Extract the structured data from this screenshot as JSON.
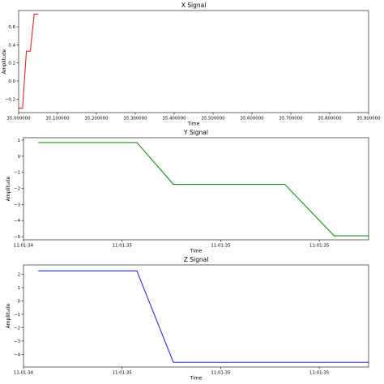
{
  "chart_data": [
    {
      "type": "line",
      "title": "X Signal",
      "xlabel": "Time",
      "ylabel": "Amplitude",
      "color": "#e8262b",
      "xlim": [
        35.0,
        35.9
      ],
      "ylim": [
        -0.35,
        0.78
      ],
      "x_ticks": [
        35.0,
        35.1,
        35.2,
        35.3,
        35.4,
        35.5,
        35.6,
        35.7,
        35.8,
        35.9
      ],
      "x_tick_labels": [
        "35.000000",
        "35.100000",
        "35.200000",
        "35.300000",
        "35.400000",
        "35.500000",
        "35.600000",
        "35.700000",
        "35.800000",
        "35.900000"
      ],
      "y_ticks": [
        -0.2,
        0.0,
        0.2,
        0.4,
        0.6
      ],
      "y_tick_labels": [
        "−0.2",
        "0.0",
        "0.2",
        "0.4",
        "0.6"
      ],
      "x": [
        35.0,
        35.01,
        35.01,
        35.02,
        35.02,
        35.03,
        35.03,
        35.04,
        35.04,
        35.05
      ],
      "y": [
        -0.3,
        -0.3,
        -0.3,
        0.33,
        0.33,
        0.33,
        0.33,
        0.74,
        0.74,
        0.74
      ]
    },
    {
      "type": "line",
      "title": "Y Signal",
      "xlabel": "Time",
      "ylabel": "Amplitude",
      "color": "#1e8b1e",
      "xlim": [
        0,
        17.5
      ],
      "ylim": [
        -5.2,
        1.15
      ],
      "x_ticks": [
        0,
        5,
        10,
        15
      ],
      "x_tick_labels": [
        "11:01:34",
        "11:01:35",
        "11:01:35",
        "11:01:35"
      ],
      "y_ticks": [
        1,
        0,
        -1,
        -2,
        -3,
        -4,
        -5
      ],
      "y_tick_labels": [
        "1",
        "0",
        "−1",
        "−2",
        "−3",
        "−4",
        "−5"
      ],
      "x": [
        0.75,
        5.75,
        7.6,
        13.25,
        15.75,
        18.8
      ],
      "y": [
        0.85,
        0.85,
        -1.75,
        -1.75,
        -4.95,
        -4.95
      ]
    },
    {
      "type": "line",
      "title": "Z Signal",
      "xlabel": "Time",
      "ylabel": "Amplitude",
      "color": "#2d2de0",
      "xlim": [
        0,
        17.5
      ],
      "ylim": [
        -4.95,
        2.7
      ],
      "x_ticks": [
        0,
        5,
        10,
        15
      ],
      "x_tick_labels": [
        "11:01:34",
        "11:01:35",
        "11:01:35",
        "11:01:35"
      ],
      "y_ticks": [
        2,
        1,
        0,
        -1,
        -2,
        -3,
        -4
      ],
      "y_tick_labels": [
        "2",
        "1",
        "0",
        "−1",
        "−2",
        "−3",
        "−4"
      ],
      "x": [
        0.75,
        5.75,
        7.6,
        18.8
      ],
      "y": [
        2.25,
        2.25,
        -4.6,
        -4.6
      ]
    }
  ]
}
